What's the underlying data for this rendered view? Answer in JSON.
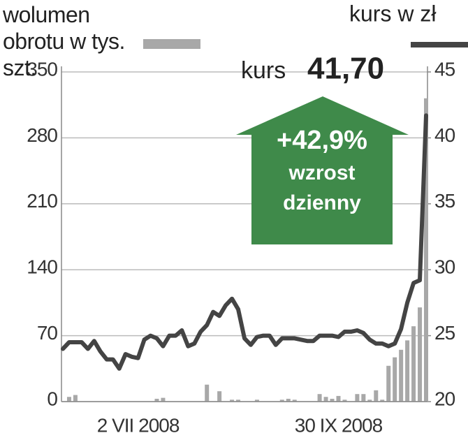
{
  "chart_data": {
    "type": "bar-line",
    "categories": [
      null,
      null,
      null,
      null,
      null,
      null,
      null,
      null,
      null,
      null,
      null,
      null,
      "2 VII 2008",
      null,
      null,
      null,
      null,
      null,
      null,
      null,
      null,
      null,
      null,
      null,
      null,
      null,
      null,
      null,
      null,
      null,
      null,
      null,
      null,
      null,
      null,
      null,
      null,
      null,
      null,
      null,
      null,
      null,
      null,
      null,
      "30 IX 2008",
      null,
      null,
      null,
      null,
      null,
      null,
      null,
      null,
      null,
      null,
      null,
      null,
      null,
      null
    ],
    "series": [
      {
        "name": "wolumen obrotu w tys. szt.",
        "type": "bar",
        "color": "#a8a8a8",
        "values": [
          0,
          5,
          7,
          0,
          0,
          0,
          0,
          0,
          0,
          0,
          0,
          0,
          0,
          0,
          0,
          3,
          4,
          0,
          0,
          0,
          0,
          0,
          0,
          18,
          0,
          11,
          0,
          2,
          2,
          0,
          0,
          2,
          0,
          0,
          0,
          2,
          3,
          2,
          0,
          0,
          0,
          8,
          5,
          3,
          6,
          2,
          0,
          8,
          8,
          2,
          12,
          2,
          38,
          47,
          55,
          65,
          80,
          100,
          322
        ]
      },
      {
        "name": "kurs w zł",
        "type": "line",
        "axis": "y2",
        "color": "#444444",
        "values": [
          24.0,
          24.5,
          24.5,
          24.5,
          24.0,
          24.6,
          23.8,
          23.2,
          23.2,
          22.5,
          23.6,
          23.4,
          23.3,
          24.7,
          25.0,
          24.8,
          24.2,
          25.0,
          25.0,
          25.4,
          24.2,
          24.4,
          25.3,
          25.8,
          26.8,
          26.5,
          27.3,
          27.8,
          27.0,
          24.8,
          24.3,
          24.9,
          25.0,
          25.0,
          24.3,
          24.8,
          24.8,
          24.8,
          24.7,
          24.6,
          24.6,
          25.0,
          25.0,
          25.0,
          24.9,
          25.3,
          25.3,
          25.4,
          25.2,
          24.7,
          24.4,
          24.4,
          24.2,
          24.4,
          25.5,
          27.5,
          29.0,
          29.2,
          41.7
        ]
      }
    ],
    "ylim": [
      0,
      350
    ],
    "yticks": [
      0,
      70,
      140,
      210,
      280,
      350
    ],
    "y2lim": [
      20,
      45
    ],
    "y2ticks": [
      20,
      25,
      30,
      35,
      40,
      45
    ],
    "grid": true,
    "annotations": {
      "price_label": "kurs",
      "price_value": "41,70",
      "change": "+42,9%",
      "change_line1": "wzrost",
      "change_line2": "dzienny",
      "arrow_color": "#3f8a4a"
    }
  }
}
